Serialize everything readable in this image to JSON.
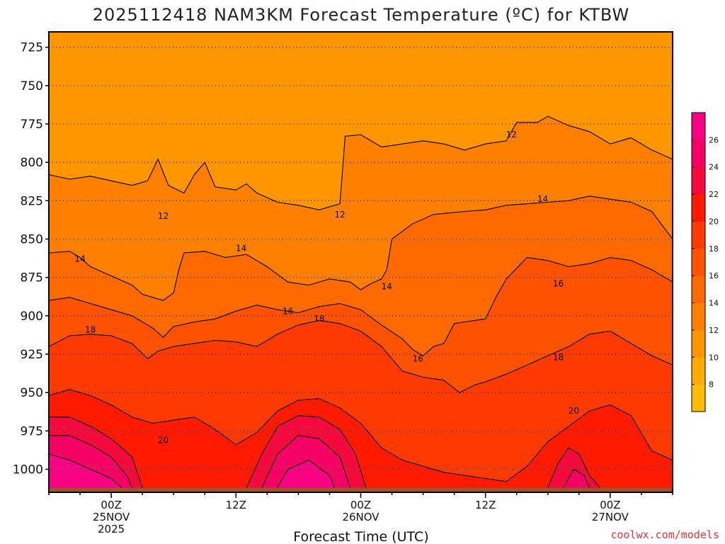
{
  "chart_data": {
    "type": "heatmap",
    "title": "2025112418 NAM3KM Forecast Temperature (ºC) for KTBW",
    "xlabel": "Forecast Time (UTC)",
    "ylabel": "",
    "y_units": "hPa",
    "ylim": [
      1015,
      715
    ],
    "y_ticks": [
      725,
      750,
      775,
      800,
      825,
      850,
      875,
      900,
      925,
      950,
      975,
      1000
    ],
    "y_tick_labels": [
      "725",
      "750",
      "775",
      "800",
      "825",
      "850",
      "875",
      "900",
      "925",
      "950",
      "975",
      "1000"
    ],
    "x_units": "forecast hour",
    "xlim": [
      18,
      78
    ],
    "x_ticks": [
      {
        "hour": 24,
        "lines": [
          "00Z",
          "25NOV",
          "2025"
        ]
      },
      {
        "hour": 36,
        "lines": [
          "12Z"
        ]
      },
      {
        "hour": 48,
        "lines": [
          "00Z",
          "26NOV"
        ]
      },
      {
        "hour": 60,
        "lines": [
          "12Z"
        ]
      },
      {
        "hour": 72,
        "lines": [
          "00Z",
          "27NOV"
        ]
      }
    ],
    "colorbar": {
      "levels": [
        6,
        8,
        10,
        12,
        14,
        16,
        18,
        20,
        22,
        24,
        26,
        28
      ],
      "colors": [
        "#ffbf00",
        "#ffab00",
        "#ff9600",
        "#ff8000",
        "#ff6a00",
        "#ff5200",
        "#ff3a00",
        "#ff1a00",
        "#f40a3c",
        "#f50064",
        "#fa0082"
      ],
      "tick_labels": [
        "8",
        "10",
        "12",
        "14",
        "16",
        "18",
        "20",
        "22",
        "24",
        "26"
      ]
    },
    "surface_color": "#a0522d",
    "isotherms": [
      {
        "value": 12,
        "label": "12",
        "points": [
          [
            18,
            808
          ],
          [
            20,
            811
          ],
          [
            22,
            809
          ],
          [
            24,
            812
          ],
          [
            26,
            815
          ],
          [
            27.5,
            812
          ],
          [
            28.5,
            798
          ],
          [
            29.5,
            815
          ],
          [
            31,
            820
          ],
          [
            32,
            808
          ],
          [
            33,
            800
          ],
          [
            34,
            816
          ],
          [
            36,
            818
          ],
          [
            37,
            814
          ],
          [
            38,
            820
          ],
          [
            40,
            826
          ],
          [
            42,
            828
          ],
          [
            44,
            831
          ],
          [
            46,
            827
          ],
          [
            46.5,
            783
          ],
          [
            48,
            782
          ],
          [
            50,
            790
          ],
          [
            52,
            788
          ],
          [
            54,
            786
          ],
          [
            56,
            788
          ],
          [
            58,
            792
          ],
          [
            60,
            788
          ],
          [
            62,
            786
          ],
          [
            63,
            774
          ],
          [
            65,
            774
          ],
          [
            66,
            770
          ],
          [
            68,
            776
          ],
          [
            70,
            780
          ],
          [
            72,
            788
          ],
          [
            74,
            784
          ],
          [
            76,
            792
          ],
          [
            78,
            798
          ]
        ],
        "labels": [
          {
            "x": 29,
            "y": 835
          },
          {
            "x": 46,
            "y": 834
          },
          {
            "x": 62.5,
            "y": 782
          }
        ]
      },
      {
        "value": 14,
        "label": "14",
        "points": [
          [
            18,
            859
          ],
          [
            20,
            858
          ],
          [
            21,
            862
          ],
          [
            22,
            868
          ],
          [
            24,
            874
          ],
          [
            26,
            880
          ],
          [
            27,
            886
          ],
          [
            28,
            888
          ],
          [
            29,
            890
          ],
          [
            30,
            885
          ],
          [
            30.5,
            870
          ],
          [
            31,
            859
          ],
          [
            33,
            858
          ],
          [
            35,
            862
          ],
          [
            37,
            860
          ],
          [
            39,
            868
          ],
          [
            41,
            878
          ],
          [
            43,
            880
          ],
          [
            45,
            876
          ],
          [
            47,
            878
          ],
          [
            48,
            883
          ],
          [
            49,
            879
          ],
          [
            50,
            876
          ],
          [
            50.5,
            870
          ],
          [
            51,
            850
          ],
          [
            53,
            840
          ],
          [
            55,
            834
          ],
          [
            58,
            832
          ],
          [
            60,
            831
          ],
          [
            62,
            828
          ],
          [
            64,
            827
          ],
          [
            66,
            826
          ],
          [
            68,
            825
          ],
          [
            70,
            822
          ],
          [
            72,
            824
          ],
          [
            74,
            826
          ],
          [
            76,
            832
          ],
          [
            78,
            850
          ]
        ],
        "labels": [
          {
            "x": 21,
            "y": 863
          },
          {
            "x": 36.5,
            "y": 856
          },
          {
            "x": 50.5,
            "y": 881
          },
          {
            "x": 65.5,
            "y": 824
          }
        ]
      },
      {
        "value": 16,
        "label": "16",
        "points": [
          [
            18,
            890
          ],
          [
            20,
            888
          ],
          [
            22,
            892
          ],
          [
            24,
            896
          ],
          [
            26,
            900
          ],
          [
            28,
            908
          ],
          [
            29,
            914
          ],
          [
            30,
            907
          ],
          [
            32,
            904
          ],
          [
            34,
            902
          ],
          [
            36,
            897
          ],
          [
            38,
            893
          ],
          [
            40,
            896
          ],
          [
            42,
            898
          ],
          [
            44,
            894
          ],
          [
            46,
            892
          ],
          [
            48,
            896
          ],
          [
            50,
            906
          ],
          [
            52,
            915
          ],
          [
            53,
            922
          ],
          [
            54,
            926
          ],
          [
            55,
            920
          ],
          [
            56,
            918
          ],
          [
            57,
            905
          ],
          [
            58,
            904
          ],
          [
            59,
            903
          ],
          [
            60,
            902
          ],
          [
            61,
            888
          ],
          [
            62,
            876
          ],
          [
            64,
            862
          ],
          [
            66,
            864
          ],
          [
            68,
            868
          ],
          [
            70,
            866
          ],
          [
            72,
            862
          ],
          [
            74,
            864
          ],
          [
            76,
            870
          ],
          [
            78,
            878
          ]
        ],
        "labels": [
          {
            "x": 53.5,
            "y": 928
          },
          {
            "x": 41,
            "y": 897
          },
          {
            "x": 67,
            "y": 879
          }
        ]
      },
      {
        "value": 18,
        "label": "18",
        "points": [
          [
            18,
            920
          ],
          [
            20,
            913
          ],
          [
            22,
            912
          ],
          [
            24,
            913
          ],
          [
            26,
            918
          ],
          [
            27.5,
            928
          ],
          [
            28.5,
            923
          ],
          [
            30,
            920
          ],
          [
            32,
            918
          ],
          [
            34,
            916
          ],
          [
            36,
            917
          ],
          [
            38,
            920
          ],
          [
            40,
            912
          ],
          [
            42,
            906
          ],
          [
            44,
            903
          ],
          [
            46,
            905
          ],
          [
            48,
            910
          ],
          [
            50,
            920
          ],
          [
            52,
            936
          ],
          [
            54,
            940
          ],
          [
            56,
            942
          ],
          [
            57.5,
            950
          ],
          [
            59,
            945
          ],
          [
            60,
            943
          ],
          [
            62,
            938
          ],
          [
            64,
            932
          ],
          [
            66,
            926
          ],
          [
            68,
            920
          ],
          [
            70,
            912
          ],
          [
            72,
            910
          ],
          [
            74,
            918
          ],
          [
            76,
            926
          ],
          [
            78,
            932
          ]
        ],
        "labels": [
          {
            "x": 22,
            "y": 909
          },
          {
            "x": 44,
            "y": 902
          },
          {
            "x": 67,
            "y": 927
          }
        ]
      },
      {
        "value": 20,
        "label": "20",
        "points": [
          [
            18,
            952
          ],
          [
            20,
            948
          ],
          [
            22,
            952
          ],
          [
            24,
            958
          ],
          [
            26,
            966
          ],
          [
            28,
            970
          ],
          [
            30,
            968
          ],
          [
            32,
            966
          ],
          [
            34,
            974
          ],
          [
            36,
            984
          ],
          [
            38,
            976
          ],
          [
            40,
            962
          ],
          [
            42,
            955
          ],
          [
            44,
            954
          ],
          [
            46,
            960
          ],
          [
            48,
            970
          ],
          [
            50,
            986
          ],
          [
            52,
            994
          ],
          [
            54,
            998
          ],
          [
            56,
            1002
          ],
          [
            58,
            1004
          ],
          [
            60,
            1006
          ],
          [
            62,
            1008
          ],
          [
            64,
            998
          ],
          [
            66,
            982
          ],
          [
            68,
            972
          ],
          [
            70,
            962
          ],
          [
            72,
            958
          ],
          [
            74,
            965
          ],
          [
            76,
            988
          ],
          [
            78,
            994
          ]
        ],
        "labels": [
          {
            "x": 29,
            "y": 981
          },
          {
            "x": 68.5,
            "y": 962
          }
        ]
      },
      {
        "value": 22,
        "label": "",
        "points": [
          [
            18,
            966
          ],
          [
            20,
            966
          ],
          [
            22,
            972
          ],
          [
            24,
            980
          ],
          [
            26,
            992
          ],
          [
            27,
            1012
          ]
        ],
        "labels": []
      },
      {
        "value": 22,
        "label": "",
        "points": [
          [
            37,
            1012
          ],
          [
            38.5,
            990
          ],
          [
            40,
            972
          ],
          [
            42,
            965
          ],
          [
            44,
            966
          ],
          [
            46,
            974
          ],
          [
            47.5,
            990
          ],
          [
            48.5,
            1012
          ]
        ],
        "labels": []
      },
      {
        "value": 22,
        "label": "",
        "points": [
          [
            66,
            1012
          ],
          [
            67,
            996
          ],
          [
            68,
            986
          ],
          [
            69,
            990
          ],
          [
            70,
            1004
          ],
          [
            71,
            1012
          ]
        ],
        "labels": []
      },
      {
        "value": 24,
        "label": "",
        "points": [
          [
            18,
            978
          ],
          [
            20,
            978
          ],
          [
            22,
            984
          ],
          [
            24,
            992
          ],
          [
            25.5,
            1004
          ],
          [
            26,
            1012
          ]
        ],
        "labels": []
      },
      {
        "value": 24,
        "label": "",
        "points": [
          [
            38.5,
            1012
          ],
          [
            40,
            990
          ],
          [
            42,
            978
          ],
          [
            44,
            980
          ],
          [
            46,
            992
          ],
          [
            47,
            1012
          ]
        ],
        "labels": []
      },
      {
        "value": 24,
        "label": "",
        "points": [
          [
            67.5,
            1012
          ],
          [
            68.5,
            1000
          ],
          [
            69.5,
            1004
          ],
          [
            70,
            1012
          ]
        ],
        "labels": []
      },
      {
        "value": 26,
        "label": "",
        "points": [
          [
            18,
            990
          ],
          [
            20,
            994
          ],
          [
            22,
            1000
          ],
          [
            24,
            1006
          ],
          [
            25,
            1012
          ]
        ],
        "labels": []
      },
      {
        "value": 26,
        "label": "",
        "points": [
          [
            40,
            1012
          ],
          [
            41,
            1000
          ],
          [
            43,
            994
          ],
          [
            45,
            1004
          ],
          [
            45.5,
            1012
          ]
        ],
        "labels": []
      }
    ]
  },
  "credit": "coolwx.com/models"
}
